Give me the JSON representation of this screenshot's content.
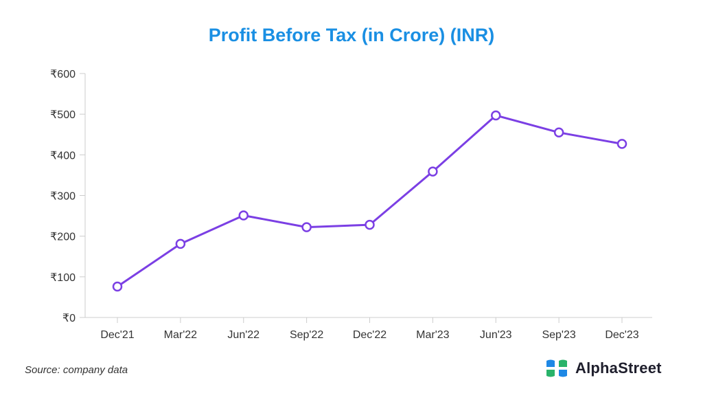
{
  "chart_data": {
    "type": "line",
    "title": "Profit Before Tax (in Crore) (INR)",
    "categories": [
      "Dec'21",
      "Mar'22",
      "Jun'22",
      "Sep'22",
      "Dec'22",
      "Mar'23",
      "Jun'23",
      "Sep'23",
      "Dec'23"
    ],
    "series": [
      {
        "values": [
          76,
          181,
          251,
          222,
          228,
          359,
          497,
          455,
          427
        ]
      }
    ],
    "y_ticks": [
      "₹0",
      "₹100",
      "₹200",
      "₹300",
      "₹400",
      "₹500",
      "₹600"
    ],
    "ylim": [
      0,
      600
    ],
    "grid": false,
    "colors": {
      "line": "#7b3fe4",
      "title": "#1a8fe3",
      "axis": "#cccccc"
    }
  },
  "footer": {
    "source": "Source: company data",
    "brand_name": "AlphaStreet",
    "brand_logo_icon": "alphastreet-logo-icon"
  }
}
